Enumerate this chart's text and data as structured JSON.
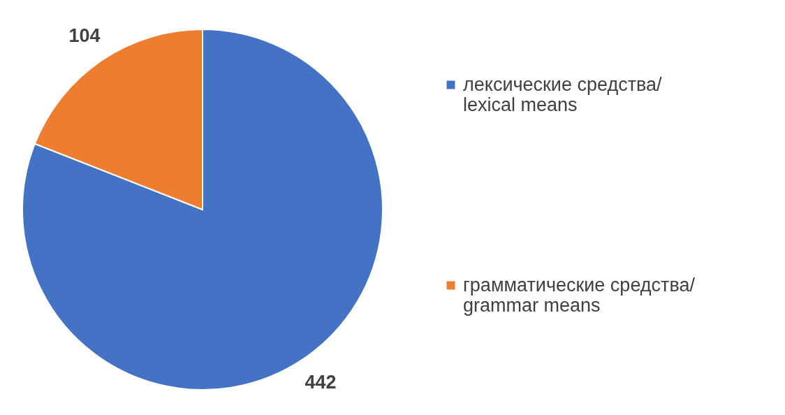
{
  "chart_data": {
    "type": "pie",
    "categories": [
      "лексические средства/ lexical means",
      "грамматические средства/ grammar means"
    ],
    "values": [
      442,
      104
    ],
    "colors": [
      "#4472c4",
      "#ed7d31"
    ],
    "data_labels": true,
    "legend": "right"
  }
}
